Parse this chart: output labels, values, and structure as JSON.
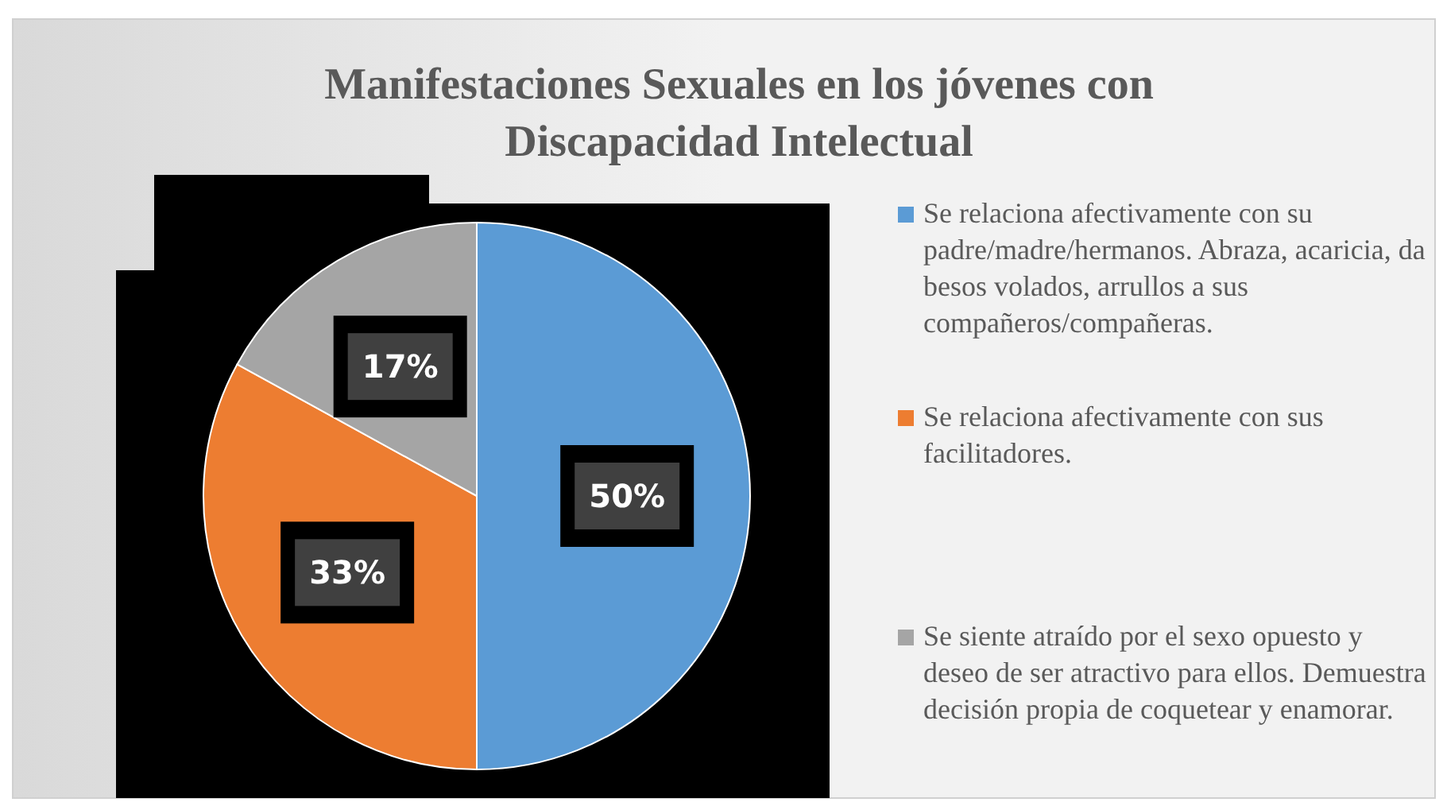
{
  "chart_data": {
    "type": "pie",
    "title": "Manifestaciones Sexuales en los jóvenes con Discapacidad Intelectual",
    "categories": [
      "Se relaciona afectivamente con su padre/madre/hermanos. Abraza, acaricia, da besos volados, arrullos a sus compañeros/compañeras.",
      "Se relaciona afectivamente con sus facilitadores.",
      "Se siente atraído por el sexo opuesto y deseo de ser atractivo para ellos. Demuestra decisión propia de coquetear y enamorar."
    ],
    "values": [
      50,
      33,
      17
    ],
    "colors": [
      "#5b9bd5",
      "#ed7d31",
      "#a5a5a5"
    ],
    "value_labels": [
      "50%",
      "33%",
      "17%"
    ],
    "legend": "right"
  }
}
